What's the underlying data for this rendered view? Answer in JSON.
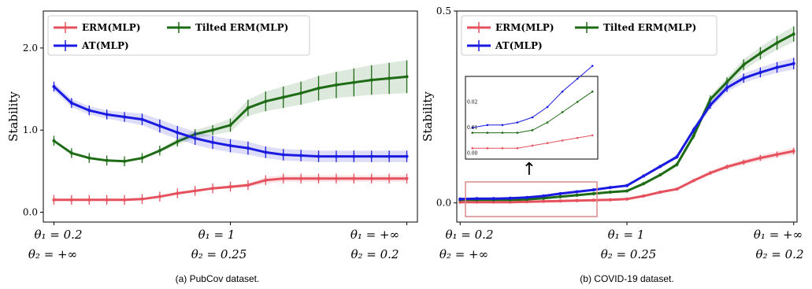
{
  "chart_data": [
    {
      "type": "line",
      "caption": "(a) PubCov dataset.",
      "ylabel": "Stability",
      "ylim": [
        -0.12,
        2.45
      ],
      "yticks": [
        "0.0",
        "1.0",
        "2.0"
      ],
      "ytick_values": [
        0,
        1,
        2
      ],
      "xlim": [
        -0.03,
        1.03
      ],
      "x_category_labels": [
        {
          "line1": "θ₁ = 0.2",
          "line2": "θ₂ = +∞"
        },
        {
          "line1": "θ₁ = 1",
          "line2": "θ₂ = 0.25"
        },
        {
          "line1": "θ₁ = +∞",
          "line2": "θ₂ = 0.2"
        }
      ],
      "legend_position": "top-left",
      "legend": [
        "ERM(MLP)",
        "Tilted ERM(MLP)",
        "AT(MLP)"
      ],
      "series": [
        {
          "name": "ERM(MLP)",
          "color": "#e5525e",
          "x": [
            0,
            0.05,
            0.1,
            0.15,
            0.2,
            0.25,
            0.3,
            0.35,
            0.4,
            0.45,
            0.5,
            0.55,
            0.6,
            0.65,
            0.7,
            0.75,
            0.8,
            0.85,
            0.9,
            0.95,
            1.0
          ],
          "y": [
            0.15,
            0.15,
            0.15,
            0.15,
            0.15,
            0.16,
            0.19,
            0.23,
            0.26,
            0.29,
            0.31,
            0.33,
            0.39,
            0.41,
            0.41,
            0.41,
            0.41,
            0.41,
            0.41,
            0.41,
            0.41
          ],
          "err": [
            0.015,
            0.015,
            0.015,
            0.015,
            0.015,
            0.015,
            0.015,
            0.015,
            0.015,
            0.015,
            0.02,
            0.02,
            0.04,
            0.04,
            0.04,
            0.04,
            0.04,
            0.04,
            0.04,
            0.04,
            0.04
          ]
        },
        {
          "name": "Tilted ERM(MLP)",
          "color": "#1e6b16",
          "x": [
            0,
            0.05,
            0.1,
            0.15,
            0.2,
            0.25,
            0.3,
            0.35,
            0.4,
            0.45,
            0.5,
            0.55,
            0.6,
            0.65,
            0.7,
            0.75,
            0.8,
            0.85,
            0.9,
            0.95,
            1.0
          ],
          "y": [
            0.87,
            0.72,
            0.66,
            0.63,
            0.62,
            0.66,
            0.75,
            0.86,
            0.95,
            1.0,
            1.06,
            1.27,
            1.35,
            1.4,
            1.45,
            1.51,
            1.55,
            1.58,
            1.61,
            1.63,
            1.65
          ],
          "err": [
            0.01,
            0.01,
            0.01,
            0.01,
            0.01,
            0.01,
            0.02,
            0.04,
            0.05,
            0.06,
            0.08,
            0.1,
            0.12,
            0.13,
            0.14,
            0.15,
            0.16,
            0.17,
            0.18,
            0.19,
            0.2
          ]
        },
        {
          "name": "AT(MLP)",
          "color": "#1a1ae0",
          "x": [
            0,
            0.05,
            0.1,
            0.15,
            0.2,
            0.25,
            0.3,
            0.35,
            0.4,
            0.45,
            0.5,
            0.55,
            0.6,
            0.65,
            0.7,
            0.75,
            0.8,
            0.85,
            0.9,
            0.95,
            1.0
          ],
          "y": [
            1.53,
            1.33,
            1.24,
            1.19,
            1.16,
            1.13,
            1.05,
            0.97,
            0.9,
            0.85,
            0.81,
            0.78,
            0.73,
            0.7,
            0.69,
            0.68,
            0.68,
            0.68,
            0.68,
            0.68,
            0.68
          ],
          "err": [
            0.05,
            0.05,
            0.05,
            0.05,
            0.06,
            0.07,
            0.08,
            0.08,
            0.08,
            0.08,
            0.08,
            0.08,
            0.07,
            0.07,
            0.07,
            0.07,
            0.07,
            0.07,
            0.07,
            0.07,
            0.07
          ]
        }
      ]
    },
    {
      "type": "line",
      "caption": "(b) COVID-19 dataset.",
      "ylabel": "Stability",
      "ylim": [
        -0.05,
        0.5
      ],
      "yticks": [
        "0.0",
        "0.5"
      ],
      "ytick_values": [
        0,
        0.5
      ],
      "xlim": [
        -0.01,
        1.01
      ],
      "x_category_labels": [
        {
          "line1": "θ₁ = 0.2",
          "line2": "θ₂ = +∞"
        },
        {
          "line1": "θ₁ = 1",
          "line2": "θ₂ = 0.25"
        },
        {
          "line1": "θ₁ = +∞",
          "line2": "θ₂ = 0.2"
        }
      ],
      "legend_position": "top-left",
      "legend": [
        "ERM(MLP)",
        "Tilted ERM(MLP)",
        "AT(MLP)"
      ],
      "series": [
        {
          "name": "ERM(MLP)",
          "color": "#e5525e",
          "x": [
            0,
            0.05,
            0.1,
            0.15,
            0.2,
            0.25,
            0.3,
            0.35,
            0.4,
            0.45,
            0.5,
            0.55,
            0.6,
            0.65,
            0.7,
            0.75,
            0.8,
            0.85,
            0.9,
            0.95,
            1.0
          ],
          "y": [
            0.002,
            0.002,
            0.002,
            0.002,
            0.003,
            0.004,
            0.005,
            0.006,
            0.007,
            0.008,
            0.01,
            0.018,
            0.028,
            0.036,
            0.058,
            0.078,
            0.094,
            0.106,
            0.117,
            0.126,
            0.135
          ],
          "err": [
            0.001,
            0.001,
            0.001,
            0.001,
            0.001,
            0.001,
            0.001,
            0.001,
            0.001,
            0.001,
            0.002,
            0.002,
            0.003,
            0.003,
            0.004,
            0.005,
            0.006,
            0.007,
            0.008,
            0.008,
            0.009
          ]
        },
        {
          "name": "Tilted ERM(MLP)",
          "color": "#1e6b16",
          "x": [
            0,
            0.05,
            0.1,
            0.15,
            0.2,
            0.25,
            0.3,
            0.35,
            0.4,
            0.45,
            0.5,
            0.55,
            0.6,
            0.65,
            0.7,
            0.75,
            0.8,
            0.85,
            0.9,
            0.95,
            1.0
          ],
          "y": [
            0.008,
            0.008,
            0.008,
            0.008,
            0.009,
            0.012,
            0.016,
            0.02,
            0.024,
            0.028,
            0.031,
            0.05,
            0.073,
            0.1,
            0.175,
            0.27,
            0.315,
            0.36,
            0.39,
            0.417,
            0.44
          ],
          "err": [
            0.001,
            0.001,
            0.001,
            0.001,
            0.001,
            0.001,
            0.001,
            0.001,
            0.002,
            0.002,
            0.002,
            0.003,
            0.004,
            0.005,
            0.008,
            0.01,
            0.012,
            0.014,
            0.016,
            0.018,
            0.02
          ]
        },
        {
          "name": "AT(MLP)",
          "color": "#1a1ae0",
          "x": [
            0,
            0.05,
            0.1,
            0.15,
            0.2,
            0.25,
            0.3,
            0.35,
            0.4,
            0.45,
            0.5,
            0.55,
            0.6,
            0.65,
            0.7,
            0.75,
            0.8,
            0.85,
            0.9,
            0.95,
            1.0
          ],
          "y": [
            0.01,
            0.011,
            0.011,
            0.012,
            0.014,
            0.018,
            0.024,
            0.029,
            0.034,
            0.04,
            0.045,
            0.07,
            0.095,
            0.12,
            0.19,
            0.255,
            0.3,
            0.325,
            0.34,
            0.353,
            0.363
          ],
          "err": [
            0.001,
            0.001,
            0.001,
            0.001,
            0.001,
            0.001,
            0.001,
            0.002,
            0.002,
            0.002,
            0.002,
            0.003,
            0.004,
            0.005,
            0.007,
            0.01,
            0.011,
            0.012,
            0.013,
            0.014,
            0.015
          ]
        }
      ],
      "inset": {
        "yticks": [
          "0.00",
          "0.01",
          "0.02"
        ],
        "ytick_values": [
          0,
          0.01,
          0.02
        ],
        "ylim": [
          -0.001,
          0.029
        ],
        "xlim": [
          -0.01,
          0.41
        ],
        "arrow_glyph": "↑"
      }
    }
  ]
}
